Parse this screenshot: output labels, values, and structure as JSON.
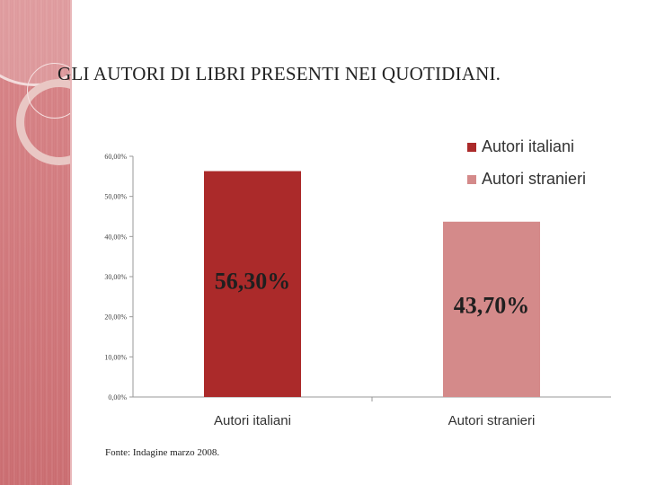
{
  "title": "GLI AUTORI DI LIBRI PRESENTI NEI QUOTIDIANI.",
  "source": "Fonte: Indagine marzo 2008.",
  "colors": {
    "series_1": "#ab2a2a",
    "series_2": "#d48a8a",
    "band": "#d4767a"
  },
  "chart_data": {
    "type": "bar",
    "categories": [
      "Autori italiani",
      "Autori stranieri"
    ],
    "values": [
      56.3,
      43.7
    ],
    "data_labels": [
      "56,30%",
      "43,70%"
    ],
    "tick_values": [
      0,
      10,
      20,
      30,
      40,
      50,
      60
    ],
    "tick_labels": [
      "0,00%",
      "10,00%",
      "20,00%",
      "30,00%",
      "40,00%",
      "50,00%",
      "60,00%"
    ],
    "ylim": [
      0,
      60
    ],
    "legend": [
      "Autori italiani",
      "Autori stranieri"
    ],
    "legend_position": "top-right",
    "grid": false
  }
}
